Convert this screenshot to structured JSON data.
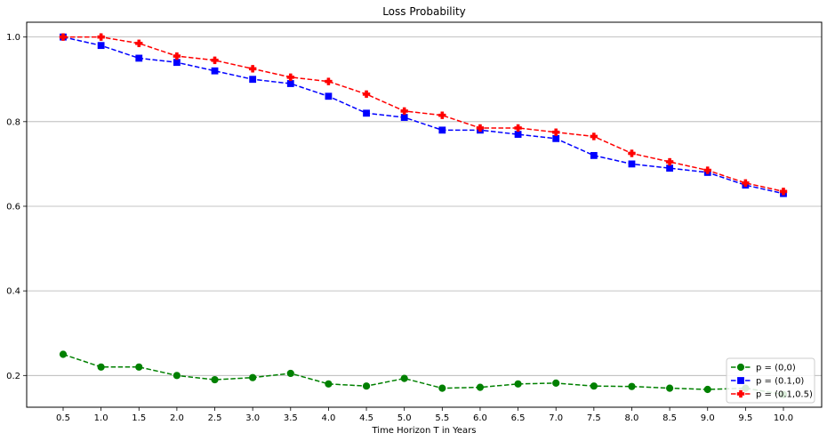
{
  "chart_data": {
    "type": "line",
    "title": "Loss Probability",
    "xlabel": "Time Horizon T in Years",
    "ylabel": "",
    "x": [
      0.5,
      1.0,
      1.5,
      2.0,
      2.5,
      3.0,
      3.5,
      4.0,
      4.5,
      5.0,
      5.5,
      6.0,
      6.5,
      7.0,
      7.5,
      8.0,
      8.5,
      9.0,
      9.5,
      10.0
    ],
    "x_tick_labels": [
      "0.5",
      "1.0",
      "1.5",
      "2.0",
      "2.5",
      "3.0",
      "3.5",
      "4.0",
      "4.5",
      "5.0",
      "5.5",
      "6.0",
      "6.5",
      "7.0",
      "7.5",
      "8.0",
      "8.5",
      "9.0",
      "9.5",
      "10.0"
    ],
    "y_ticks": [
      0.2,
      0.4,
      0.6,
      0.8,
      1.0
    ],
    "y_tick_labels": [
      "0.2",
      "0.4",
      "0.6",
      "0.8",
      "1.0"
    ],
    "ylim": [
      0.125,
      1.035
    ],
    "grid": "y",
    "legend_position": "lower-right",
    "series": [
      {
        "name": "p = (0,0)",
        "color": "#008000",
        "marker": "circle",
        "values": [
          0.25,
          0.22,
          0.22,
          0.2,
          0.19,
          0.195,
          0.205,
          0.18,
          0.175,
          0.193,
          0.17,
          0.172,
          0.18,
          0.182,
          0.175,
          0.174,
          0.17,
          0.167,
          0.17,
          0.155
        ]
      },
      {
        "name": "p = (0.1,0)",
        "color": "#0000ff",
        "marker": "square",
        "values": [
          1.0,
          0.98,
          0.95,
          0.94,
          0.92,
          0.9,
          0.89,
          0.86,
          0.82,
          0.81,
          0.78,
          0.78,
          0.77,
          0.76,
          0.72,
          0.7,
          0.69,
          0.68,
          0.65,
          0.63
        ]
      },
      {
        "name": "p = (0.1,0.5)",
        "color": "#ff0000",
        "marker": "plus",
        "values": [
          1.0,
          1.0,
          0.985,
          0.955,
          0.945,
          0.925,
          0.905,
          0.895,
          0.865,
          0.825,
          0.815,
          0.785,
          0.785,
          0.775,
          0.765,
          0.725,
          0.705,
          0.685,
          0.655,
          0.635
        ]
      }
    ]
  }
}
